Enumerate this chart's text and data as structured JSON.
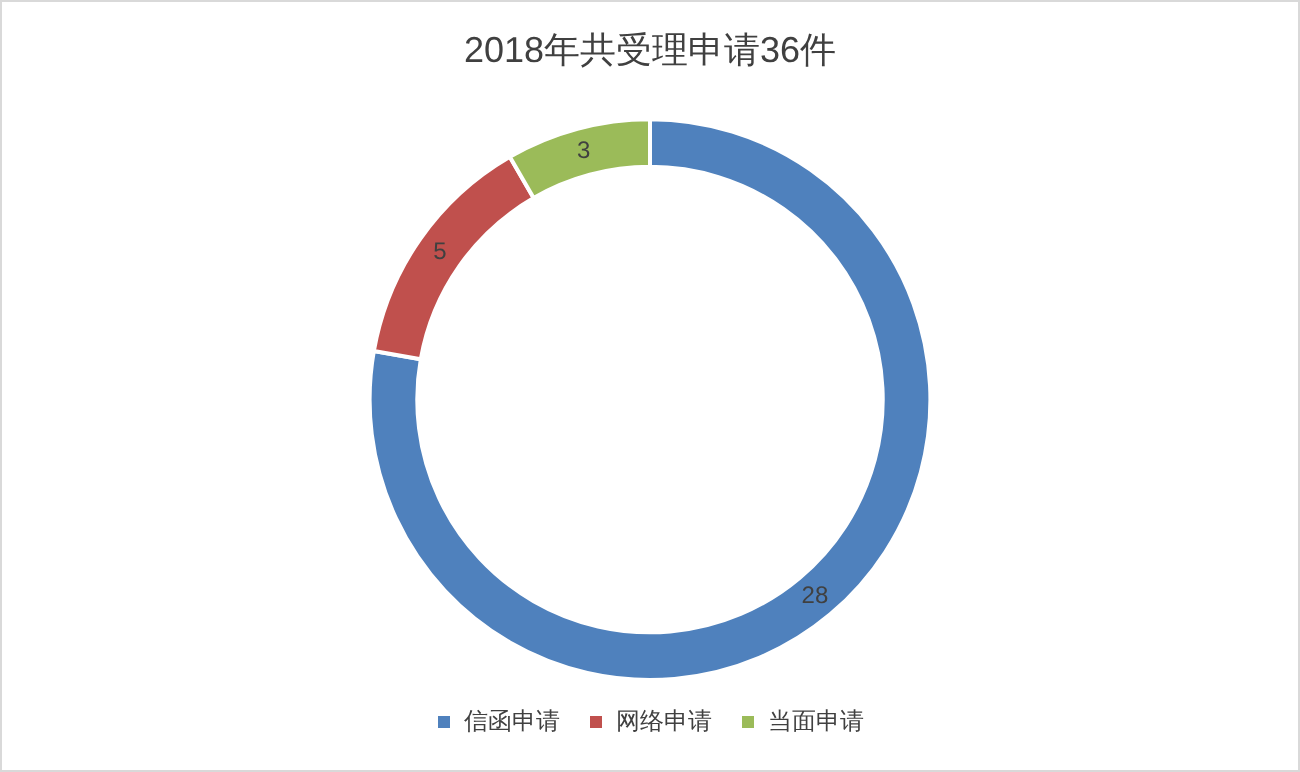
{
  "chart_data": {
    "type": "donut",
    "title": "2018年共受理申请36件",
    "categories": [
      "信函申请",
      "网络申请",
      "当面申请"
    ],
    "values": [
      28,
      5,
      3
    ],
    "colors": [
      "#4f81bd",
      "#c0504d",
      "#9bbb59"
    ],
    "data_labels": true,
    "legend": "bottom"
  }
}
